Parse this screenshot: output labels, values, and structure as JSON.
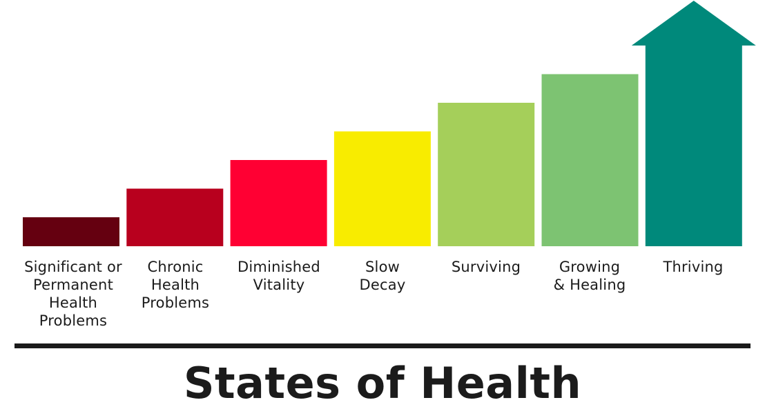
{
  "title": "States of Health",
  "steps": [
    {
      "label": "Significant or\nPermanent\nHealth\nProblems",
      "level": 1,
      "color": "#650010"
    },
    {
      "label": "Chronic\nHealth\nProblems",
      "level": 2,
      "color": "#b8001e"
    },
    {
      "label": "Diminished\nVitality",
      "level": 3,
      "color": "#ff0033"
    },
    {
      "label": "Slow\nDecay",
      "level": 4,
      "color": "#f8ec00"
    },
    {
      "label": "Surviving",
      "level": 5,
      "color": "#a5cf5a"
    },
    {
      "label": "Growing\n& Healing",
      "level": 6,
      "color": "#7dc372"
    },
    {
      "label": "Thriving",
      "level": 7,
      "color": "#00897b",
      "shape": "arrow"
    }
  ]
}
